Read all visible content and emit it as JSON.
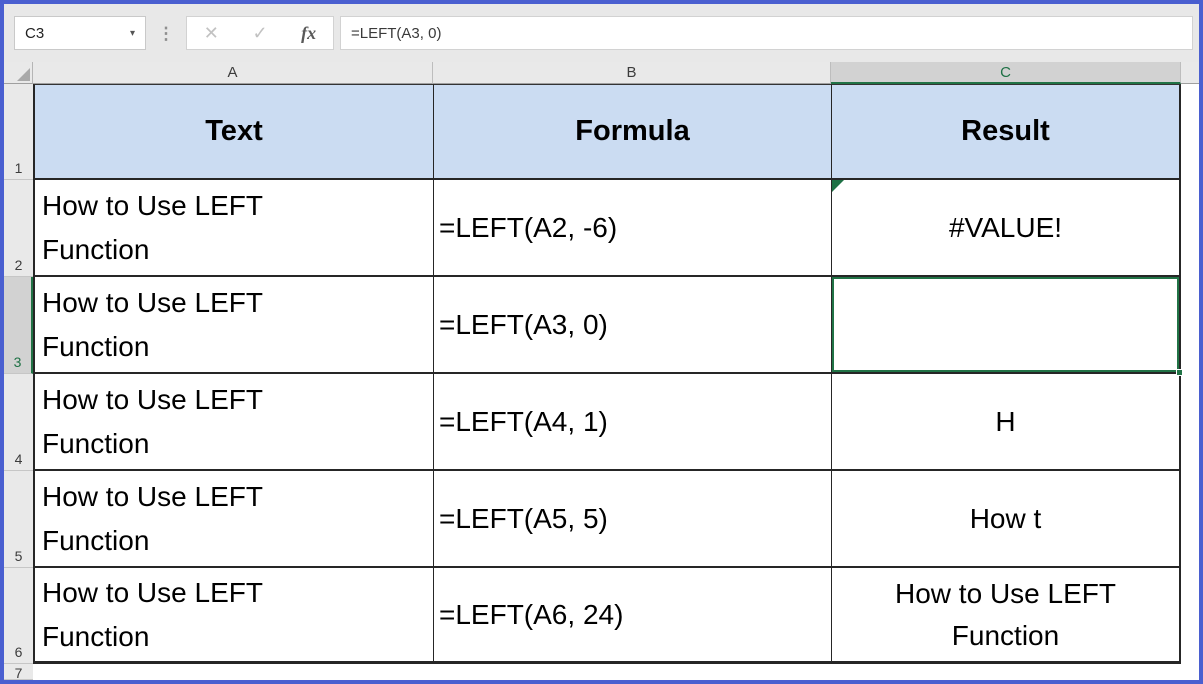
{
  "toolbar": {
    "name_box_value": "C3",
    "name_box_dropdown": "▾",
    "grip": "⋮",
    "cancel_label": "✕",
    "enter_label": "✓",
    "fx_label": "fx",
    "formula_bar_value": "=LEFT(A3, 0)"
  },
  "grid": {
    "selected_cell": "C3",
    "column_headers": [
      "A",
      "B",
      "C"
    ],
    "header_row": {
      "row_num": "1",
      "text": "Text",
      "formula": "Formula",
      "result": "Result"
    },
    "rows": [
      {
        "row_num": "2",
        "text": "How to Use LEFT Function",
        "formula": "=LEFT(A2, -6)",
        "result": "#VALUE!",
        "error_indicator": true
      },
      {
        "row_num": "3",
        "text": "How to Use LEFT Function",
        "formula": "=LEFT(A3, 0)",
        "result": "",
        "selected": true
      },
      {
        "row_num": "4",
        "text": "How to Use LEFT Function",
        "formula": "=LEFT(A4, 1)",
        "result": "H"
      },
      {
        "row_num": "5",
        "text": "How to Use LEFT Function",
        "formula": "=LEFT(A5, 5)",
        "result": "How t"
      },
      {
        "row_num": "6",
        "text": "How to Use LEFT Function",
        "formula": "=LEFT(A6, 24)",
        "result": "How to Use LEFT Function"
      }
    ],
    "partial_row_num": "7"
  },
  "colors": {
    "window_border": "#4a5fd0",
    "selection_green": "#217346",
    "header_fill": "#cbdcf2",
    "grid_line": "#262626"
  }
}
